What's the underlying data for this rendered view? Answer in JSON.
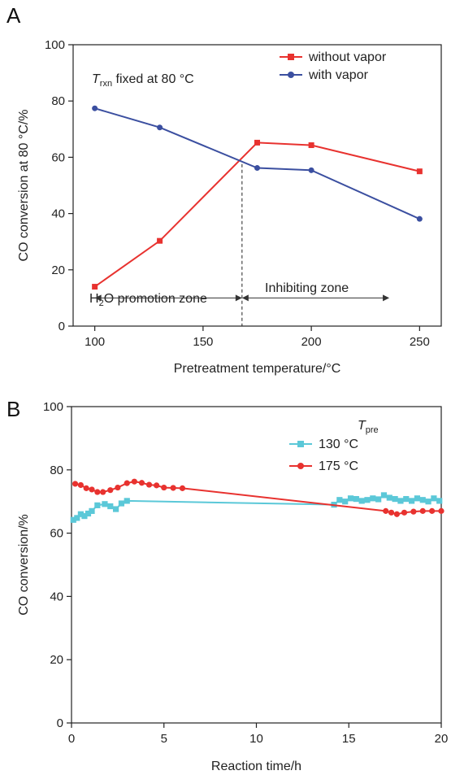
{
  "chart_data": [
    {
      "panel": "A",
      "type": "line",
      "xlabel": "Pretreatment temperature/°C",
      "ylabel": "CO conversion at 80 °C/%",
      "xlim": [
        90,
        260
      ],
      "ylim": [
        0,
        100
      ],
      "xticks": [
        100,
        150,
        200,
        250
      ],
      "yticks": [
        0,
        20,
        40,
        60,
        80,
        100
      ],
      "legend": "top-right",
      "series": [
        {
          "name": "without vapor",
          "color": "#e8322f",
          "marker": "square",
          "x": [
            100,
            130,
            175,
            200,
            250
          ],
          "y": [
            14,
            30.3,
            65.2,
            64.3,
            55
          ]
        },
        {
          "name": "with vapor",
          "color": "#3b4fa0",
          "marker": "circle",
          "x": [
            100,
            130,
            175,
            200,
            250
          ],
          "y": [
            77.4,
            70.6,
            56.2,
            55.4,
            38.1
          ]
        }
      ],
      "annotations": {
        "condition_T": "T",
        "condition_sub": "rxn",
        "condition_rest": " fixed at 80 °C",
        "zone1_pre": "H",
        "zone1_sub": "2",
        "zone1_post": "O promotion zone",
        "zone2": "Inhibiting zone",
        "divider_x": 168
      }
    },
    {
      "panel": "B",
      "type": "line",
      "xlabel": "Reaction time/h",
      "ylabel": "CO conversion/%",
      "xlim": [
        0,
        20
      ],
      "ylim": [
        0,
        100
      ],
      "xticks": [
        0,
        5,
        10,
        15,
        20
      ],
      "yticks": [
        0,
        20,
        40,
        60,
        80,
        100
      ],
      "legend": "top-right",
      "legend_title_T": "T",
      "legend_title_sub": "pre",
      "series": [
        {
          "name": "130 °C",
          "color": "#5bc8d8",
          "marker": "square",
          "x": [
            0.1,
            0.3,
            0.5,
            0.7,
            0.9,
            1.1,
            1.4,
            1.8,
            2.1,
            2.4,
            2.7,
            3.0,
            14.2,
            14.5,
            14.8,
            15.1,
            15.4,
            15.7,
            16.0,
            16.3,
            16.6,
            16.9,
            17.2,
            17.5,
            17.8,
            18.1,
            18.4,
            18.7,
            19.0,
            19.3,
            19.6,
            19.9
          ],
          "y": [
            64.2,
            64.8,
            66,
            65.4,
            66.2,
            67,
            68.8,
            69.2,
            68.5,
            67.6,
            69.4,
            70.2,
            69,
            70.5,
            70,
            71,
            70.8,
            70.2,
            70.5,
            71,
            70.7,
            72,
            71.2,
            70.8,
            70.2,
            70.8,
            70.2,
            71,
            70.5,
            70,
            71,
            70.2
          ]
        },
        {
          "name": "175 °C",
          "color": "#e8322f",
          "marker": "circle",
          "x": [
            0.2,
            0.5,
            0.8,
            1.1,
            1.4,
            1.7,
            2.1,
            2.5,
            3.0,
            3.4,
            3.8,
            4.2,
            4.6,
            5.0,
            5.5,
            6.0,
            17.0,
            17.3,
            17.6,
            18.0,
            18.5,
            19.0,
            19.5,
            20.0
          ],
          "y": [
            75.6,
            75.2,
            74.2,
            73.8,
            73,
            73,
            73.6,
            74.4,
            75.8,
            76.3,
            75.9,
            75.3,
            75.1,
            74.4,
            74.3,
            74.2,
            67,
            66.5,
            66,
            66.5,
            66.8,
            67,
            67,
            67
          ]
        }
      ]
    }
  ]
}
